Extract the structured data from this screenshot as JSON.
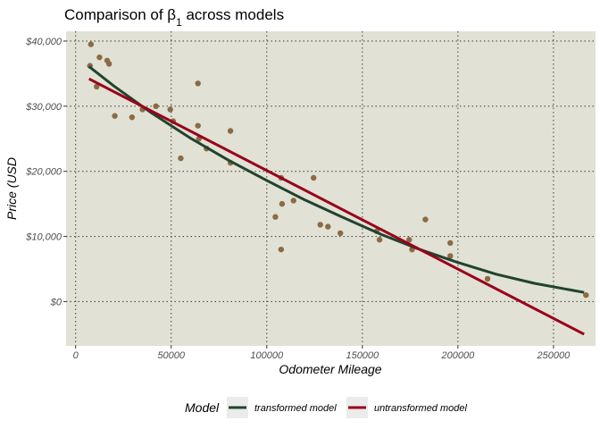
{
  "chart_data": {
    "type": "scatter",
    "title_prefix": "Comparison of β",
    "title_subscript": "1",
    "title_suffix": " across models",
    "xlabel": "Odometer Mileage",
    "ylabel": "Price (USD",
    "xlim": [
      -5000,
      272000
    ],
    "ylim": [
      -6800,
      41500
    ],
    "x_ticks": [
      0,
      50000,
      100000,
      150000,
      200000,
      250000
    ],
    "x_tick_labels": [
      "0",
      "50000",
      "100000",
      "150000",
      "200000",
      "250000"
    ],
    "y_ticks": [
      0,
      10000,
      20000,
      30000,
      40000
    ],
    "y_tick_labels": [
      "$0",
      "$10,000",
      "$20,000",
      "$30,000",
      "$40,000"
    ],
    "grid": true,
    "background": "#e1e1d5",
    "grid_color": "#4d4d4d",
    "point_color": "#8b6a45",
    "points": [
      [
        8000,
        39500
      ],
      [
        7500,
        36200
      ],
      [
        12500,
        37500
      ],
      [
        16500,
        37000
      ],
      [
        17500,
        36500
      ],
      [
        11000,
        33000
      ],
      [
        20500,
        28500
      ],
      [
        29500,
        28300
      ],
      [
        35000,
        29500
      ],
      [
        42000,
        30000
      ],
      [
        49500,
        29500
      ],
      [
        51000,
        27700
      ],
      [
        64000,
        33500
      ],
      [
        64000,
        27000
      ],
      [
        64500,
        25000
      ],
      [
        55000,
        22000
      ],
      [
        68500,
        23500
      ],
      [
        81000,
        26200
      ],
      [
        81000,
        21300
      ],
      [
        104500,
        13000
      ],
      [
        107500,
        19000
      ],
      [
        108000,
        15000
      ],
      [
        107500,
        8000
      ],
      [
        114000,
        15500
      ],
      [
        124500,
        19000
      ],
      [
        128000,
        11800
      ],
      [
        132000,
        11500
      ],
      [
        138500,
        10500
      ],
      [
        157500,
        10800
      ],
      [
        159000,
        9500
      ],
      [
        174500,
        9500
      ],
      [
        176000,
        8000
      ],
      [
        183000,
        12600
      ],
      [
        196000,
        9000
      ],
      [
        196000,
        7000
      ],
      [
        215500,
        3500
      ],
      [
        267000,
        1000
      ]
    ],
    "series": [
      {
        "name": "transformed model",
        "color": "#20432e",
        "x": [
          7000,
          20000,
          40000,
          60000,
          80000,
          100000,
          120000,
          140000,
          160000,
          180000,
          200000,
          220000,
          240000,
          266000
        ],
        "y": [
          36100,
          33100,
          28900,
          25100,
          21700,
          18600,
          15600,
          12900,
          10300,
          8000,
          6000,
          4200,
          2800,
          1400
        ]
      },
      {
        "name": "untransformed model",
        "color": "#99001a",
        "x": [
          7000,
          266000
        ],
        "y": [
          34200,
          -5000
        ]
      }
    ],
    "legend_title": "Model",
    "legend_position": "bottom"
  }
}
